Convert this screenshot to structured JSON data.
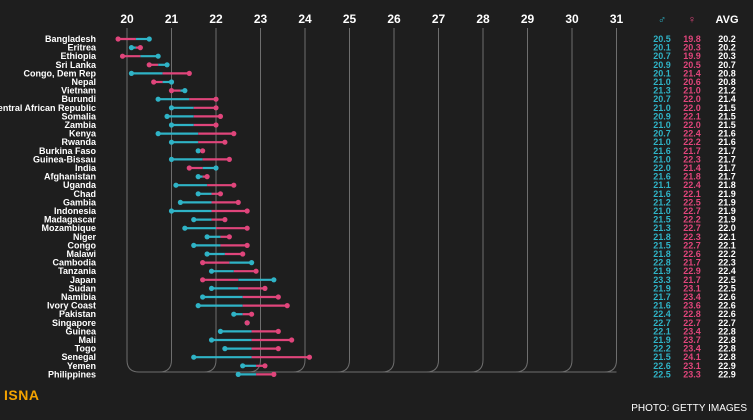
{
  "chart_data": {
    "type": "dumbbell",
    "xticks": [
      20,
      21,
      22,
      23,
      24,
      25,
      26,
      27,
      28,
      29,
      30,
      31
    ],
    "xlim": [
      20,
      31
    ],
    "columns": {
      "male": "♂",
      "female": "♀",
      "avg": "AVG"
    },
    "colors": {
      "male": "#2fb3c6",
      "female": "#e0457b",
      "avg": "#ffffff",
      "grid": "#6e6e6e",
      "background": "#1e1e1e"
    },
    "rows": [
      {
        "country": "Bangladesh",
        "male": 20.5,
        "female": 19.8,
        "avg": 20.2
      },
      {
        "country": "Eritrea",
        "male": 20.1,
        "female": 20.3,
        "avg": 20.2
      },
      {
        "country": "Ethiopia",
        "male": 20.7,
        "female": 19.9,
        "avg": 20.3
      },
      {
        "country": "Sri Lanka",
        "male": 20.9,
        "female": 20.5,
        "avg": 20.7
      },
      {
        "country": "Congo, Dem Rep",
        "male": 20.1,
        "female": 21.4,
        "avg": 20.8
      },
      {
        "country": "Nepal",
        "male": 21.0,
        "female": 20.6,
        "avg": 20.8
      },
      {
        "country": "Vietnam",
        "male": 21.3,
        "female": 21.0,
        "avg": 21.2
      },
      {
        "country": "Burundi",
        "male": 20.7,
        "female": 22.0,
        "avg": 21.4
      },
      {
        "country": "Central African Republic",
        "male": 21.0,
        "female": 22.0,
        "avg": 21.5
      },
      {
        "country": "Somalia",
        "male": 20.9,
        "female": 22.1,
        "avg": 21.5
      },
      {
        "country": "Zambia",
        "male": 21.0,
        "female": 22.0,
        "avg": 21.5
      },
      {
        "country": "Kenya",
        "male": 20.7,
        "female": 22.4,
        "avg": 21.6
      },
      {
        "country": "Rwanda",
        "male": 21.0,
        "female": 22.2,
        "avg": 21.6
      },
      {
        "country": "Burkina Faso",
        "male": 21.6,
        "female": 21.7,
        "avg": 21.7
      },
      {
        "country": "Guinea-Bissau",
        "male": 21.0,
        "female": 22.3,
        "avg": 21.7
      },
      {
        "country": "India",
        "male": 22.0,
        "female": 21.4,
        "avg": 21.7
      },
      {
        "country": "Afghanistan",
        "male": 21.6,
        "female": 21.8,
        "avg": 21.7
      },
      {
        "country": "Uganda",
        "male": 21.1,
        "female": 22.4,
        "avg": 21.8
      },
      {
        "country": "Chad",
        "male": 21.6,
        "female": 22.1,
        "avg": 21.9
      },
      {
        "country": "Gambia",
        "male": 21.2,
        "female": 22.5,
        "avg": 21.9
      },
      {
        "country": "Indonesia",
        "male": 21.0,
        "female": 22.7,
        "avg": 21.9
      },
      {
        "country": "Madagascar",
        "male": 21.5,
        "female": 22.2,
        "avg": 21.9
      },
      {
        "country": "Mozambique",
        "male": 21.3,
        "female": 22.7,
        "avg": 22.0
      },
      {
        "country": "Niger",
        "male": 21.8,
        "female": 22.3,
        "avg": 22.1
      },
      {
        "country": "Congo",
        "male": 21.5,
        "female": 22.7,
        "avg": 22.1
      },
      {
        "country": "Malawi",
        "male": 21.8,
        "female": 22.6,
        "avg": 22.2
      },
      {
        "country": "Cambodia",
        "male": 22.8,
        "female": 21.7,
        "avg": 22.3
      },
      {
        "country": "Tanzania",
        "male": 21.9,
        "female": 22.9,
        "avg": 22.4
      },
      {
        "country": "Japan",
        "male": 23.3,
        "female": 21.7,
        "avg": 22.5
      },
      {
        "country": "Sudan",
        "male": 21.9,
        "female": 23.1,
        "avg": 22.5
      },
      {
        "country": "Namibia",
        "male": 21.7,
        "female": 23.4,
        "avg": 22.6
      },
      {
        "country": "Ivory Coast",
        "male": 21.6,
        "female": 23.6,
        "avg": 22.6
      },
      {
        "country": "Pakistan",
        "male": 22.4,
        "female": 22.8,
        "avg": 22.6
      },
      {
        "country": "Singapore",
        "male": 22.7,
        "female": 22.7,
        "avg": 22.7
      },
      {
        "country": "Guinea",
        "male": 22.1,
        "female": 23.4,
        "avg": 22.8
      },
      {
        "country": "Mali",
        "male": 21.9,
        "female": 23.7,
        "avg": 22.8
      },
      {
        "country": "Togo",
        "male": 22.2,
        "female": 23.4,
        "avg": 22.8
      },
      {
        "country": "Senegal",
        "male": 21.5,
        "female": 24.1,
        "avg": 22.8
      },
      {
        "country": "Yemen",
        "male": 22.6,
        "female": 23.1,
        "avg": 22.9
      },
      {
        "country": "Philippines",
        "male": 22.5,
        "female": 23.3,
        "avg": 22.9
      }
    ]
  },
  "watermark": "ISNA",
  "credit": "PHOTO: GETTY IMAGES"
}
